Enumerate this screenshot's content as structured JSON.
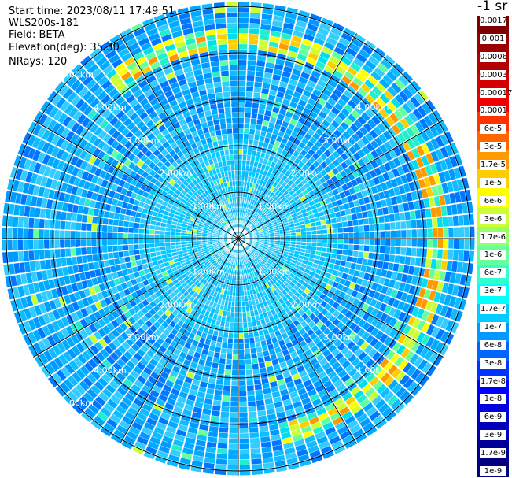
{
  "info": {
    "start_time": "Start time: 2023/08/11 17:49:51",
    "instrument": "WLS200s-181",
    "field": "Field: BETA",
    "elevation": "Elevation(deg): 35.30",
    "nrays": "NRays: 120"
  },
  "colorbar": {
    "unit": "-1 sr",
    "labels": [
      "0.0017",
      "0.001",
      "0.0006",
      "0.0003",
      "0.00017",
      "0.0001",
      "6e-5",
      "3e-5",
      "1.7e-5",
      "1e-5",
      "6e-6",
      "3e-6",
      "1.7e-6",
      "1e-6",
      "6e-7",
      "3e-7",
      "1.7e-7",
      "1e-7",
      "6e-8",
      "3e-8",
      "1.7e-8",
      "1e-8",
      "6e-9",
      "3e-9",
      "1.7e-9",
      "1e-9"
    ],
    "colors": [
      "#7f0000",
      "#9a0000",
      "#b50000",
      "#d40000",
      "#f00000",
      "#ff3300",
      "#ff6600",
      "#ff9900",
      "#ffcc00",
      "#ffff00",
      "#ccff33",
      "#99ff66",
      "#66ff99",
      "#33ffcc",
      "#00ffff",
      "#00ccff",
      "#0099ff",
      "#0066ff",
      "#0033ff",
      "#0000ff",
      "#0000dd",
      "#0000bb",
      "#000099",
      "#000080"
    ]
  },
  "chart_data": {
    "type": "heatmap",
    "projection": "polar (PPI)",
    "field": "BETA",
    "elevation_deg": 35.3,
    "n_rays": 120,
    "range_rings_km": [
      1.0,
      2.0,
      3.0,
      4.0,
      5.0
    ],
    "ring_labels": [
      "1.00km",
      "2.00km",
      "3.00km",
      "4.00km",
      "5.00km"
    ],
    "max_range_km": 5.1,
    "color_scale": "log",
    "scale_min": "1e-9",
    "scale_max": "0.0017",
    "background_level": "3e-8",
    "enhanced_layer": {
      "range_km": [
        4.2,
        4.4
      ],
      "peak_level": "1e-5",
      "azimuth_deg": [
        -40,
        165
      ]
    }
  }
}
